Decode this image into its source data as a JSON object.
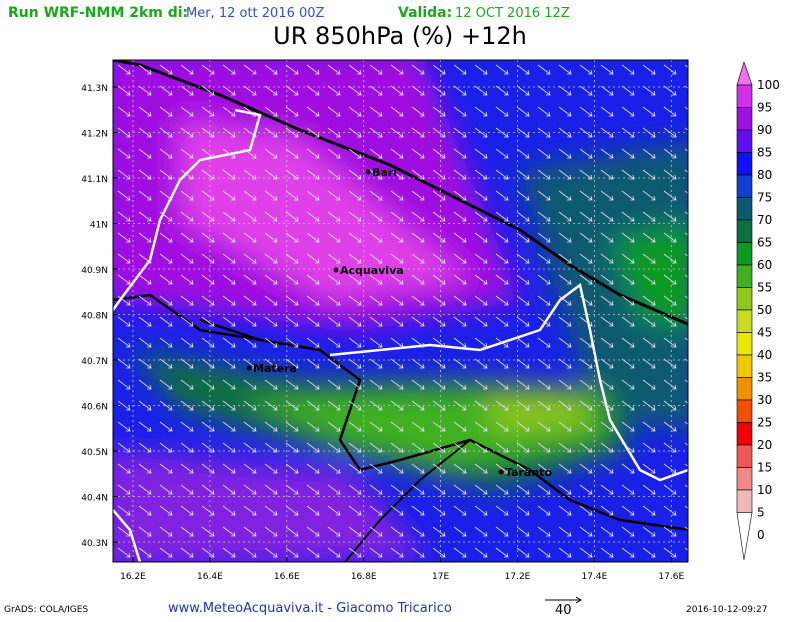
{
  "header": {
    "run_label": "Run WRF-NMM 2km di:",
    "run_date": "Mer, 12 ott 2016 00Z",
    "valid_label": "Valida:",
    "valid_date": "12 OCT 2016 12Z",
    "title": "UR 850hPa (%) +12h"
  },
  "map": {
    "lat_labels": [
      "41.3N",
      "41.2N",
      "41.1N",
      "41N",
      "40.9N",
      "40.8N",
      "40.7N",
      "40.6N",
      "40.5N",
      "40.4N",
      "40.3N"
    ],
    "lon_labels": [
      "16.2E",
      "16.4E",
      "16.6E",
      "16.8E",
      "17E",
      "17.2E",
      "17.4E",
      "17.6E"
    ],
    "cities": [
      "Bari",
      "Acquaviva",
      "Matera",
      "Taranto"
    ]
  },
  "colorbar": {
    "levels": [
      100,
      95,
      90,
      85,
      80,
      75,
      70,
      65,
      60,
      55,
      50,
      45,
      40,
      35,
      30,
      25,
      20,
      15,
      10,
      5,
      0
    ],
    "colors": [
      "#f070f0",
      "#d030e8",
      "#a010e0",
      "#6010f0",
      "#1010ff",
      "#1040d0",
      "#0a5a70",
      "#0a7040",
      "#0a9a20",
      "#40b020",
      "#90c820",
      "#c8dc20",
      "#e8e800",
      "#f0c800",
      "#f09000",
      "#f05000",
      "#f00000",
      "#f05858",
      "#f08888",
      "#f0b8b8",
      "#ffffff"
    ]
  },
  "footer": {
    "software": "GrADS: COLA/IGES",
    "credit": "www.MeteoAcquaviva.it - Giacomo Tricarico",
    "vector_scale": "40",
    "timestamp": "2016-10-12-09:27"
  }
}
